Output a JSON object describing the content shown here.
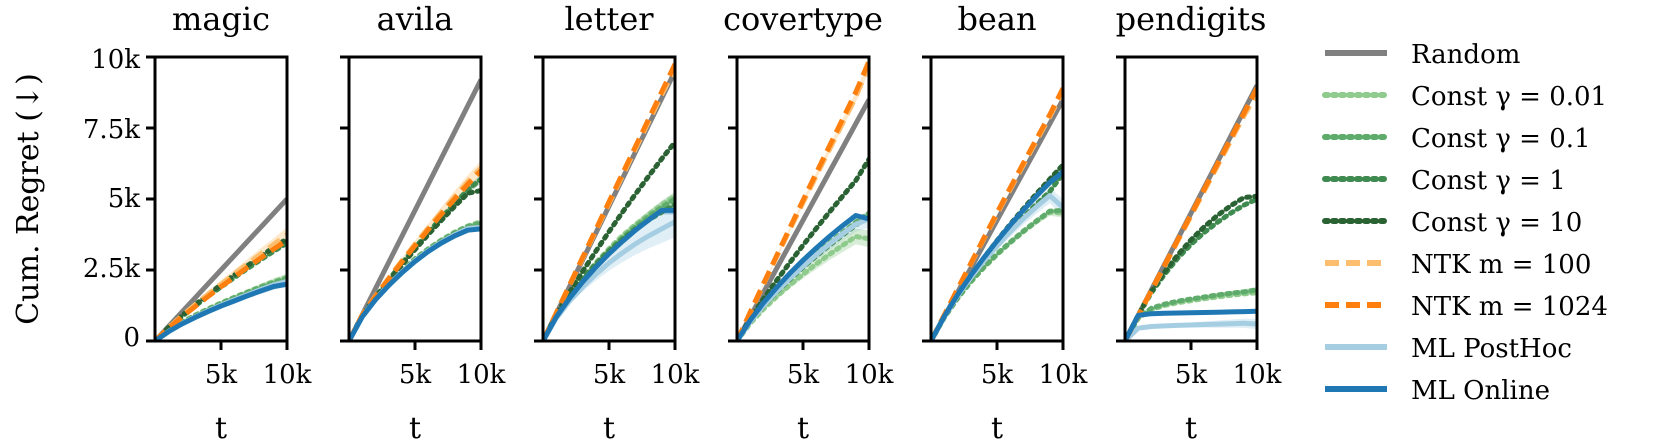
{
  "chart_data": {
    "type": "line",
    "ylabel": "Cum. Regret (↓)",
    "xlabel": "t",
    "x_ticks": [
      5000,
      10000
    ],
    "x_tick_labels": [
      "5k",
      "10k"
    ],
    "xlim": [
      0,
      10000
    ],
    "y_ticks": [
      0,
      2500,
      5000,
      7500,
      10000
    ],
    "y_tick_labels": [
      "0",
      "2.5k",
      "5k",
      "7.5k",
      "10k"
    ],
    "ylim": [
      0,
      10000
    ],
    "x": [
      0,
      1000,
      2000,
      3000,
      4000,
      5000,
      6000,
      7000,
      8000,
      9000,
      10000
    ],
    "legend": [
      {
        "key": "random",
        "label": "Random",
        "color": "#808080",
        "dash": "solid",
        "alpha": 1
      },
      {
        "key": "c001",
        "label": "Const γ = 0.01",
        "color": "#8fcb8c",
        "dash": "dotted",
        "alpha": 1
      },
      {
        "key": "c01",
        "label": "Const γ = 0.1",
        "color": "#5fab6b",
        "dash": "dotted",
        "alpha": 1
      },
      {
        "key": "c1",
        "label": "Const γ = 1",
        "color": "#3f8a4f",
        "dash": "dotted",
        "alpha": 1
      },
      {
        "key": "c10",
        "label": "Const γ = 10",
        "color": "#2a6233",
        "dash": "dotted",
        "alpha": 1
      },
      {
        "key": "ntk100",
        "label": "NTK m = 100",
        "color": "#fdbf6f",
        "dash": "dashed",
        "alpha": 1
      },
      {
        "key": "ntk1024",
        "label": "NTK m = 1024",
        "color": "#ff7f0e",
        "dash": "dashed",
        "alpha": 1
      },
      {
        "key": "mlph",
        "label": "ML PostHoc",
        "color": "#a6cee3",
        "dash": "solid",
        "alpha": 1
      },
      {
        "key": "mlon",
        "label": "ML Online",
        "color": "#1f78b4",
        "dash": "solid",
        "alpha": 1
      }
    ],
    "panels": [
      {
        "title": "magic",
        "series": {
          "random": [
            0,
            500,
            1000,
            1500,
            2000,
            2500,
            3000,
            3500,
            4000,
            4500,
            5000
          ],
          "c001": [
            0,
            360,
            650,
            900,
            1130,
            1340,
            1540,
            1730,
            1920,
            2100,
            2250
          ],
          "c01": [
            0,
            350,
            640,
            890,
            1110,
            1320,
            1520,
            1710,
            1890,
            2060,
            2200
          ],
          "c1": [
            0,
            450,
            850,
            1220,
            1570,
            1900,
            2230,
            2550,
            2860,
            3160,
            3450
          ],
          "c10": [
            0,
            470,
            880,
            1260,
            1630,
            1980,
            2320,
            2650,
            2980,
            3300,
            3600
          ],
          "ntk100": [
            0,
            460,
            870,
            1260,
            1640,
            2000,
            2360,
            2710,
            3060,
            3400,
            3750
          ],
          "ntk1024": [
            0,
            440,
            830,
            1200,
            1560,
            1910,
            2250,
            2590,
            2920,
            3240,
            3550
          ],
          "mlph": [
            0,
            330,
            600,
            840,
            1060,
            1260,
            1450,
            1630,
            1810,
            1980,
            2100
          ],
          "mlon": [
            0,
            320,
            590,
            820,
            1030,
            1230,
            1410,
            1590,
            1760,
            1920,
            2000
          ]
        },
        "bands": {
          "mlph": 200,
          "ntk100": 250,
          "c001": 120
        }
      },
      {
        "title": "avila",
        "series": {
          "random": [
            0,
            920,
            1840,
            2760,
            3680,
            4600,
            5520,
            6440,
            7360,
            8280,
            9200
          ],
          "c001": [
            0,
            880,
            1500,
            2020,
            2480,
            2900,
            3250,
            3560,
            3830,
            4050,
            4200
          ],
          "c01": [
            0,
            870,
            1490,
            2010,
            2470,
            2880,
            3230,
            3540,
            3810,
            4030,
            4150
          ],
          "c1": [
            0,
            900,
            1540,
            2150,
            2730,
            3280,
            3820,
            4340,
            4840,
            5320,
            5700
          ],
          "c10": [
            0,
            890,
            1520,
            2110,
            2680,
            3220,
            3750,
            4250,
            4740,
            5200,
            5300
          ],
          "ntk100": [
            0,
            920,
            1580,
            2210,
            2820,
            3410,
            3980,
            4540,
            5080,
            5610,
            6100
          ],
          "ntk1024": [
            0,
            910,
            1560,
            2180,
            2780,
            3360,
            3920,
            4470,
            5000,
            5520,
            6000
          ],
          "mlph": [
            0,
            860,
            1470,
            1980,
            2430,
            2830,
            3180,
            3480,
            3740,
            3960,
            4000
          ],
          "mlon": [
            0,
            850,
            1450,
            1950,
            2400,
            2800,
            3150,
            3450,
            3700,
            3900,
            3950
          ]
        },
        "bands": {
          "mlph": 120,
          "ntk100": 250,
          "c1": 150
        }
      },
      {
        "title": "letter",
        "series": {
          "random": [
            0,
            950,
            1900,
            2850,
            3800,
            4750,
            5700,
            6650,
            7600,
            8550,
            9500
          ],
          "c001": [
            0,
            900,
            1600,
            2200,
            2750,
            3250,
            3700,
            4100,
            4450,
            4800,
            5100
          ],
          "c01": [
            0,
            890,
            1580,
            2170,
            2700,
            3180,
            3620,
            4020,
            4380,
            4710,
            5000
          ],
          "c1": [
            0,
            900,
            1600,
            2200,
            2720,
            3180,
            3580,
            3940,
            4260,
            4540,
            4800
          ],
          "c10": [
            0,
            920,
            1700,
            2450,
            3160,
            3850,
            4520,
            5170,
            5800,
            6420,
            7000
          ],
          "ntk100": [
            0,
            970,
            1940,
            2910,
            3880,
            4840,
            5800,
            6760,
            7720,
            8680,
            9600
          ],
          "ntk1024": [
            0,
            980,
            1960,
            2940,
            3920,
            4900,
            5870,
            6840,
            7810,
            8780,
            9750
          ],
          "mlph": [
            0,
            800,
            1400,
            1900,
            2350,
            2750,
            3100,
            3420,
            3700,
            3950,
            4200
          ],
          "mlon": [
            0,
            840,
            1500,
            2080,
            2600,
            3070,
            3500,
            3900,
            4260,
            4600,
            4600
          ]
        },
        "bands": {
          "mlph": 550,
          "c01": 250,
          "mlon": 150
        }
      },
      {
        "title": "covertype",
        "series": {
          "random": [
            0,
            850,
            1700,
            2550,
            3400,
            4250,
            5100,
            5950,
            6800,
            7650,
            8500
          ],
          "c001": [
            0,
            620,
            1120,
            1560,
            1970,
            2350,
            2710,
            3050,
            3370,
            3680,
            3600
          ],
          "c01": [
            0,
            700,
            1260,
            1760,
            2220,
            2650,
            3060,
            3450,
            3820,
            4180,
            4500
          ],
          "c1": [
            0,
            680,
            1230,
            1720,
            2170,
            2590,
            2990,
            3370,
            3730,
            4080,
            4400
          ],
          "c10": [
            0,
            780,
            1480,
            2130,
            2760,
            3370,
            3960,
            4540,
            5100,
            5650,
            6400
          ],
          "ntk100": [
            0,
            1000,
            1990,
            2960,
            3920,
            4870,
            5810,
            6740,
            7670,
            8590,
            9700
          ],
          "ntk1024": [
            0,
            1010,
            2010,
            3000,
            3980,
            4950,
            5910,
            6860,
            7810,
            8760,
            9850
          ],
          "mlph": [
            0,
            680,
            1240,
            1740,
            2200,
            2630,
            3030,
            3410,
            3770,
            4110,
            4300
          ],
          "mlon": [
            0,
            730,
            1340,
            1880,
            2380,
            2840,
            3270,
            3680,
            4060,
            4420,
            4300
          ]
        },
        "bands": {
          "mlph": 300,
          "c001": 300,
          "ntk100": 200
        }
      },
      {
        "title": "bean",
        "series": {
          "random": [
            0,
            850,
            1700,
            2550,
            3400,
            4250,
            5100,
            5950,
            6800,
            7650,
            8500
          ],
          "c001": [
            0,
            820,
            1490,
            2070,
            2580,
            3040,
            3460,
            3850,
            4210,
            4540,
            4500
          ],
          "c01": [
            0,
            820,
            1500,
            2080,
            2600,
            3060,
            3480,
            3870,
            4230,
            4570,
            4600
          ],
          "c1": [
            0,
            840,
            1560,
            2200,
            2800,
            3350,
            3870,
            4360,
            4820,
            5260,
            5900
          ],
          "c10": [
            0,
            850,
            1600,
            2280,
            2920,
            3530,
            4110,
            4660,
            5190,
            5700,
            6200
          ],
          "ntk100": [
            0,
            900,
            1800,
            2700,
            3590,
            4470,
            5340,
            6200,
            7060,
            7900,
            8800
          ],
          "ntk1024": [
            0,
            910,
            1820,
            2720,
            3620,
            4510,
            5390,
            6260,
            7120,
            7970,
            8900
          ],
          "mlph": [
            0,
            850,
            1580,
            2220,
            2810,
            3350,
            3850,
            4310,
            4730,
            5120,
            4700
          ],
          "mlon": [
            0,
            860,
            1620,
            2300,
            2930,
            3520,
            4080,
            4610,
            5110,
            5580,
            5950
          ]
        },
        "bands": {
          "mlph": 300,
          "c001": 150,
          "mlon": 150
        }
      },
      {
        "title": "pendigits",
        "series": {
          "random": [
            0,
            900,
            1800,
            2700,
            3600,
            4500,
            5400,
            6300,
            7200,
            8100,
            9000
          ],
          "c001": [
            0,
            800,
            1100,
            1250,
            1350,
            1420,
            1490,
            1550,
            1610,
            1660,
            1700
          ],
          "c01": [
            0,
            820,
            1150,
            1300,
            1400,
            1480,
            1550,
            1620,
            1680,
            1730,
            1800
          ],
          "c1": [
            0,
            900,
            1700,
            2350,
            2920,
            3400,
            3820,
            4180,
            4500,
            4780,
            5000
          ],
          "c10": [
            0,
            910,
            1740,
            2430,
            3030,
            3560,
            4020,
            4420,
            4760,
            5050,
            5100
          ],
          "ntk100": [
            0,
            880,
            1760,
            2640,
            3520,
            4400,
            5280,
            6160,
            7040,
            7920,
            8700
          ],
          "ntk1024": [
            0,
            890,
            1780,
            2670,
            3560,
            4450,
            5340,
            6230,
            7120,
            8010,
            8900
          ],
          "mlph": [
            0,
            450,
            510,
            530,
            550,
            565,
            580,
            595,
            610,
            625,
            600
          ],
          "mlon": [
            0,
            900,
            960,
            975,
            985,
            995,
            1005,
            1015,
            1025,
            1035,
            1050
          ]
        },
        "bands": {
          "mlph": 180,
          "c01": 100
        }
      }
    ]
  }
}
